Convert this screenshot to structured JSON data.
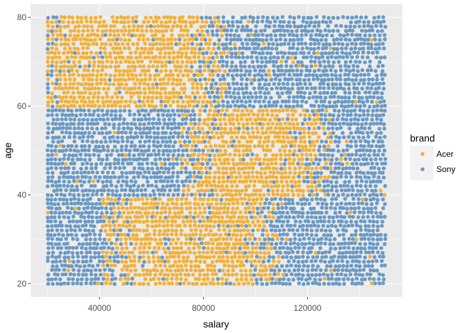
{
  "chart_data": {
    "type": "scatter",
    "xlabel": "salary",
    "ylabel": "age",
    "x_ticks": [
      40000,
      80000,
      120000
    ],
    "x_tick_labels": [
      "40000",
      "80000",
      "120000"
    ],
    "y_ticks": [
      20,
      40,
      60,
      80
    ],
    "y_tick_labels": [
      "20",
      "40",
      "60",
      "80"
    ],
    "xlim": [
      13500,
      156500
    ],
    "ylim": [
      17,
      83
    ],
    "x_data_range": [
      20000,
      150000
    ],
    "y_data_range": [
      20,
      80
    ],
    "grid": true,
    "legend": {
      "title": "brand",
      "position": "right",
      "entries": [
        {
          "name": "Acer",
          "color": "#F2B13B"
        },
        {
          "name": "Sony",
          "color": "#6B9AC4"
        }
      ]
    },
    "series": [
      {
        "name": "Acer",
        "color": "#F2B13B",
        "description": "dense region; boundary bands",
        "bands": [
          {
            "age_range": [
              20,
              40
            ],
            "salary_range": [
              50000,
              100000
            ]
          },
          {
            "age_range": [
              40,
              60
            ],
            "salary_range": [
              80000,
              120000
            ]
          },
          {
            "age_range": [
              60,
              80
            ],
            "salary_range": [
              20000,
              80000
            ]
          }
        ]
      },
      {
        "name": "Sony",
        "color": "#6B9AC4",
        "description": "fills remaining area"
      }
    ]
  }
}
